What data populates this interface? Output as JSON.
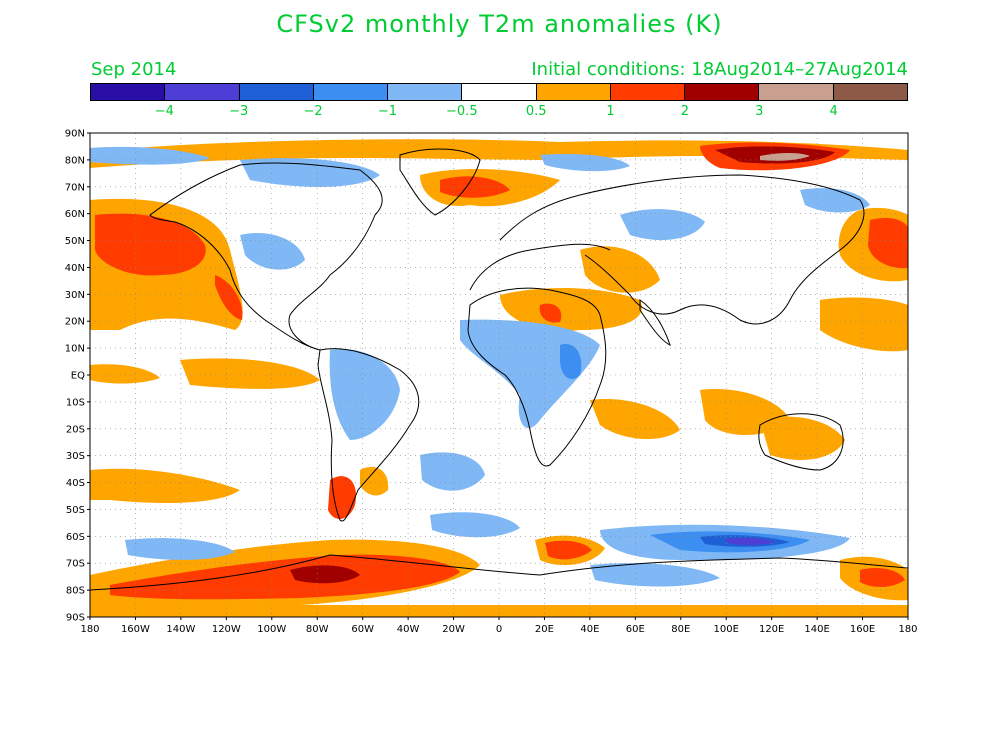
{
  "title": "CFSv2 monthly T2m anomalies (K)",
  "forecast_month": "Sep 2014",
  "initial_conditions": "Initial conditions: 18Aug2014–27Aug2014",
  "colorbar": {
    "colors": [
      "#2a0fa6",
      "#4d3fd6",
      "#1f5fd6",
      "#3c8ff0",
      "#7fb8f5",
      "#ffffff",
      "#ffa500",
      "#ff3b00",
      "#a00000",
      "#c9a090",
      "#8c5a46"
    ],
    "labels": [
      "−4",
      "−3",
      "−2",
      "−1",
      "−0.5",
      "0.5",
      "1",
      "2",
      "3",
      "4"
    ]
  },
  "map": {
    "lat_labels": [
      "90N",
      "80N",
      "70N",
      "60N",
      "50N",
      "40N",
      "30N",
      "20N",
      "10N",
      "EQ",
      "10S",
      "20S",
      "30S",
      "40S",
      "50S",
      "60S",
      "70S",
      "80S",
      "90S"
    ],
    "lon_labels": [
      "180",
      "160W",
      "140W",
      "120W",
      "100W",
      "80W",
      "60W",
      "40W",
      "20W",
      "0",
      "20E",
      "40E",
      "60E",
      "80E",
      "100E",
      "120E",
      "140E",
      "160E",
      "180"
    ]
  }
}
